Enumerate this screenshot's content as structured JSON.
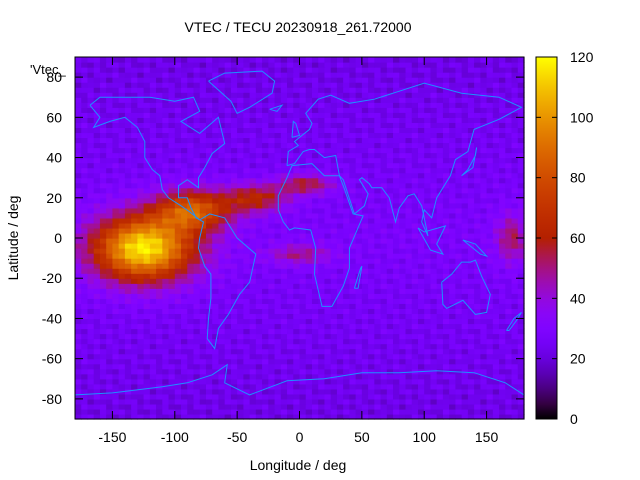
{
  "chart_data": {
    "type": "heatmap",
    "title": "VTEC / TECU 20230918_261.72000",
    "key_label": "'Vtec_",
    "xlabel": "Longitude / deg",
    "ylabel": "Latitude / deg",
    "xlim": [
      -180,
      180
    ],
    "ylim": [
      -90,
      90
    ],
    "xticks": [
      -150,
      -100,
      -50,
      0,
      50,
      100,
      150
    ],
    "yticks": [
      -80,
      -60,
      -40,
      -20,
      0,
      20,
      40,
      60,
      80
    ],
    "colorbar": {
      "range": [
        0,
        120
      ],
      "ticks": [
        0,
        20,
        40,
        60,
        80,
        100,
        120
      ],
      "palette": "black-blue-purple-red-orange-yellow"
    },
    "grid_resolution": {
      "lon_step": 5,
      "lat_step": 2.5
    },
    "blobs": [
      {
        "lon": -125,
        "lat": -5,
        "sx": 40,
        "sy": 16,
        "v": 90
      },
      {
        "lon": -85,
        "lat": 14,
        "sx": 30,
        "sy": 10,
        "v": 55
      },
      {
        "lon": -35,
        "lat": 20,
        "sx": 25,
        "sy": 7,
        "v": 35
      },
      {
        "lon": 5,
        "lat": 27,
        "sx": 22,
        "sy": 5,
        "v": 30
      },
      {
        "lon": 0,
        "lat": -8,
        "sx": 25,
        "sy": 5,
        "v": 22
      },
      {
        "lon": 170,
        "lat": 0,
        "sx": 12,
        "sy": 12,
        "v": 25
      }
    ],
    "background_level": 28,
    "coastlines": "overlay"
  },
  "colors": {
    "coastline": "#1e90ff"
  }
}
